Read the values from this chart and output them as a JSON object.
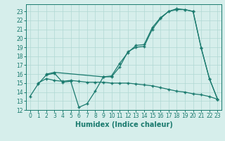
{
  "line1_x": [
    0,
    1,
    2,
    3,
    4,
    5,
    6,
    7,
    8,
    9,
    10,
    11,
    12,
    13,
    14,
    15,
    16,
    17,
    18,
    19,
    20,
    21,
    22,
    23
  ],
  "line1_y": [
    13.5,
    14.9,
    15.9,
    16.1,
    15.1,
    15.2,
    12.3,
    12.7,
    14.1,
    15.7,
    15.7,
    16.8,
    18.5,
    19.0,
    19.1,
    21.0,
    22.2,
    23.0,
    23.2,
    23.2,
    23.0,
    18.9,
    15.5,
    13.2
  ],
  "line2_x": [
    2,
    3,
    9,
    10,
    11,
    12,
    13,
    14,
    15,
    16,
    17,
    18,
    19,
    20,
    21,
    22,
    23
  ],
  "line2_y": [
    16.0,
    16.2,
    15.7,
    15.8,
    17.2,
    18.4,
    19.2,
    19.3,
    21.2,
    22.3,
    23.0,
    23.3,
    23.2,
    23.0,
    18.9,
    15.5,
    13.2
  ],
  "line3_x": [
    1,
    2,
    3,
    4,
    5,
    6,
    7,
    8,
    9,
    10,
    11,
    12,
    13,
    14,
    15,
    16,
    17,
    18,
    19,
    20,
    21,
    22,
    23
  ],
  "line3_y": [
    15.0,
    15.5,
    15.3,
    15.2,
    15.3,
    15.2,
    15.1,
    15.1,
    15.1,
    15.0,
    15.0,
    15.0,
    14.9,
    14.8,
    14.7,
    14.5,
    14.3,
    14.1,
    14.0,
    13.8,
    13.7,
    13.5,
    13.2
  ],
  "color": "#1a7a6e",
  "bg_color": "#d6eeeb",
  "grid_color": "#b0d8d3",
  "xlabel": "Humidex (Indice chaleur)",
  "xlim": [
    -0.5,
    23.5
  ],
  "ylim": [
    12,
    23.8
  ],
  "xticks": [
    0,
    1,
    2,
    3,
    4,
    5,
    6,
    7,
    8,
    9,
    10,
    11,
    12,
    13,
    14,
    15,
    16,
    17,
    18,
    19,
    20,
    21,
    22,
    23
  ],
  "yticks": [
    12,
    13,
    14,
    15,
    16,
    17,
    18,
    19,
    20,
    21,
    22,
    23
  ],
  "tick_fontsize": 5.5,
  "xlabel_fontsize": 7.0,
  "marker": "+"
}
